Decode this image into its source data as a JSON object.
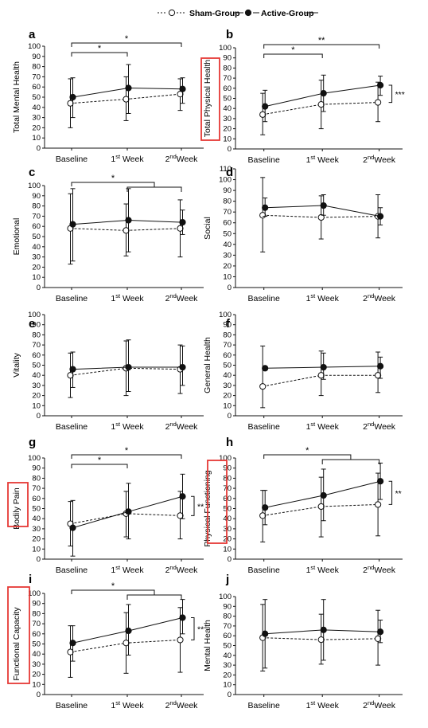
{
  "legend": {
    "sham_label": "Sham-Group",
    "active_label": "Active-Group"
  },
  "x_labels": [
    {
      "base": "Baseline",
      "sup": ""
    },
    {
      "base": "1",
      "sup": "st",
      "rest": " Week"
    },
    {
      "base": "2",
      "sup": "nd",
      "rest": "Week"
    }
  ],
  "colors": {
    "line": "#111111",
    "highlight_box": "#e53935"
  },
  "chart_data": [
    {
      "panel": "a",
      "type": "line",
      "ylabel": "Total Mental Health",
      "highlight": false,
      "ylim": [
        0,
        100
      ],
      "ytick_step": 10,
      "categories": [
        "Baseline",
        "1st Week",
        "2ndWeek"
      ],
      "series": [
        {
          "name": "Sham-Group",
          "values": [
            44,
            48,
            53
          ],
          "err": [
            [
              20,
              68
            ],
            [
              27,
              70
            ],
            [
              37,
              68
            ]
          ]
        },
        {
          "name": "Active-Group",
          "values": [
            50,
            59,
            58
          ],
          "err": [
            [
              30,
              69
            ],
            [
              34,
              82
            ],
            [
              44,
              69
            ]
          ]
        }
      ],
      "brackets": [
        {
          "from": 0,
          "to": 1,
          "label": "*",
          "level": 1
        },
        {
          "from": 0,
          "to": 2,
          "label": "*",
          "level": 2
        }
      ],
      "side_sig": ""
    },
    {
      "panel": "b",
      "type": "line",
      "ylabel": "Total Physical Health",
      "highlight": true,
      "ylim": [
        0,
        100
      ],
      "ytick_step": 10,
      "categories": [
        "Baseline",
        "1st Week",
        "2ndWeek"
      ],
      "series": [
        {
          "name": "Sham-Group",
          "values": [
            34,
            44,
            46
          ],
          "err": [
            [
              14,
              55
            ],
            [
              20,
              68
            ],
            [
              27,
              66
            ]
          ]
        },
        {
          "name": "Active-Group",
          "values": [
            42,
            55,
            63
          ],
          "err": [
            [
              27,
              58
            ],
            [
              37,
              73
            ],
            [
              53,
              72
            ]
          ]
        }
      ],
      "brackets": [
        {
          "from": 0,
          "to": 1,
          "label": "*",
          "level": 1
        },
        {
          "from": 0,
          "to": 2,
          "label": "**",
          "level": 2
        }
      ],
      "side_sig": "***"
    },
    {
      "panel": "c",
      "type": "line",
      "ylabel": "Emotional",
      "highlight": false,
      "ylim": [
        0,
        100
      ],
      "ytick_step": 10,
      "categories": [
        "Baseline",
        "1st Week",
        "2ndWeek"
      ],
      "series": [
        {
          "name": "Sham-Group",
          "values": [
            58,
            56,
            58
          ],
          "err": [
            [
              23,
              92
            ],
            [
              31,
              82
            ],
            [
              30,
              86
            ]
          ]
        },
        {
          "name": "Active-Group",
          "values": [
            62,
            66,
            64
          ],
          "err": [
            [
              26,
              97
            ],
            [
              35,
              97
            ],
            [
              52,
              76
            ]
          ]
        }
      ],
      "brackets": [
        {
          "from": 0,
          "to": [
            1,
            2
          ],
          "label": "*",
          "level": 2
        }
      ],
      "side_sig": ""
    },
    {
      "panel": "d",
      "type": "line",
      "ylabel": "Social",
      "highlight": false,
      "ylim": [
        0,
        110
      ],
      "ytick_step": 10,
      "categories": [
        "Baseline",
        "1st Week",
        "2ndWeek"
      ],
      "series": [
        {
          "name": "Sham-Group",
          "values": [
            67,
            65,
            66
          ],
          "err": [
            [
              33,
              102
            ],
            [
              45,
              85
            ],
            [
              46,
              86
            ]
          ]
        },
        {
          "name": "Active-Group",
          "values": [
            74,
            76,
            66
          ],
          "err": [
            [
              66,
              83
            ],
            [
              67,
              86
            ],
            [
              58,
              74
            ]
          ]
        }
      ],
      "brackets": [],
      "side_sig": ""
    },
    {
      "panel": "e",
      "type": "line",
      "ylabel": "Vitality",
      "highlight": false,
      "ylim": [
        0,
        100
      ],
      "ytick_step": 10,
      "categories": [
        "Baseline",
        "1st Week",
        "2ndWeek"
      ],
      "series": [
        {
          "name": "Sham-Group",
          "values": [
            40,
            47,
            46
          ],
          "err": [
            [
              18,
              62
            ],
            [
              20,
              74
            ],
            [
              22,
              70
            ]
          ]
        },
        {
          "name": "Active-Group",
          "values": [
            46,
            48,
            48
          ],
          "err": [
            [
              28,
              63
            ],
            [
              24,
              75
            ],
            [
              30,
              69
            ]
          ]
        }
      ],
      "brackets": [],
      "side_sig": ""
    },
    {
      "panel": "f",
      "type": "line",
      "ylabel": "General Health",
      "highlight": false,
      "ylim": [
        0,
        100
      ],
      "ytick_step": 10,
      "categories": [
        "Baseline",
        "1st Week",
        "2ndWeek"
      ],
      "series": [
        {
          "name": "Sham-Group",
          "values": [
            29,
            40,
            40
          ],
          "err": [
            [
              8,
              69
            ],
            [
              20,
              64
            ],
            [
              23,
              63
            ]
          ]
        },
        {
          "name": "Active-Group",
          "values": [
            47,
            48,
            49
          ],
          "err": [
            [
              47,
              47
            ],
            [
              36,
              62
            ],
            [
              37,
              58
            ]
          ]
        }
      ],
      "brackets": [],
      "side_sig": ""
    },
    {
      "panel": "g",
      "type": "line",
      "ylabel": "Bodily Pain",
      "highlight": true,
      "ylim": [
        0,
        100
      ],
      "ytick_step": 10,
      "categories": [
        "Baseline",
        "1st Week",
        "2ndWeek"
      ],
      "series": [
        {
          "name": "Sham-Group",
          "values": [
            35,
            45,
            43
          ],
          "err": [
            [
              13,
              57
            ],
            [
              22,
              67
            ],
            [
              20,
              67
            ]
          ]
        },
        {
          "name": "Active-Group",
          "values": [
            31,
            47,
            62
          ],
          "err": [
            [
              3,
              58
            ],
            [
              20,
              75
            ],
            [
              40,
              84
            ]
          ]
        }
      ],
      "brackets": [
        {
          "from": 0,
          "to": 1,
          "label": "*",
          "level": 1
        },
        {
          "from": 0,
          "to": 2,
          "label": "*",
          "level": 2
        }
      ],
      "side_sig": "**"
    },
    {
      "panel": "h",
      "type": "line",
      "ylabel": "Physical Functioning",
      "highlight": true,
      "ylim": [
        0,
        100
      ],
      "ytick_step": 10,
      "categories": [
        "Baseline",
        "1st Week",
        "2ndWeek"
      ],
      "series": [
        {
          "name": "Sham-Group",
          "values": [
            43,
            52,
            54
          ],
          "err": [
            [
              17,
              68
            ],
            [
              22,
              81
            ],
            [
              23,
              85
            ]
          ]
        },
        {
          "name": "Active-Group",
          "values": [
            51,
            63,
            77
          ],
          "err": [
            [
              34,
              68
            ],
            [
              38,
              89
            ],
            [
              59,
              95
            ]
          ]
        }
      ],
      "brackets": [
        {
          "from": 0,
          "to": [
            1,
            2
          ],
          "label": "*",
          "level": 2
        }
      ],
      "side_sig": "**"
    },
    {
      "panel": "i",
      "type": "line",
      "ylabel": "Functional Capacity",
      "highlight": true,
      "ylim": [
        0,
        100
      ],
      "ytick_step": 10,
      "categories": [
        "Baseline",
        "1st Week",
        "2ndWeek"
      ],
      "series": [
        {
          "name": "Sham-Group",
          "values": [
            42,
            51,
            54
          ],
          "err": [
            [
              17,
              68
            ],
            [
              21,
              81
            ],
            [
              22,
              86
            ]
          ]
        },
        {
          "name": "Active-Group",
          "values": [
            51,
            63,
            76
          ],
          "err": [
            [
              33,
              68
            ],
            [
              39,
              89
            ],
            [
              60,
              94
            ]
          ]
        }
      ],
      "brackets": [
        {
          "from": 0,
          "to": [
            1,
            2
          ],
          "label": "*",
          "level": 2
        }
      ],
      "side_sig": "**"
    },
    {
      "panel": "j",
      "type": "line",
      "ylabel": "Mental Health",
      "highlight": false,
      "ylim": [
        0,
        100
      ],
      "ytick_step": 10,
      "categories": [
        "Baseline",
        "1st Week",
        "2ndWeek"
      ],
      "series": [
        {
          "name": "Sham-Group",
          "values": [
            58,
            56,
            57
          ],
          "err": [
            [
              24,
              92
            ],
            [
              31,
              82
            ],
            [
              30,
              86
            ]
          ]
        },
        {
          "name": "Active-Group",
          "values": [
            62,
            66,
            64
          ],
          "err": [
            [
              27,
              97
            ],
            [
              35,
              97
            ],
            [
              53,
              76
            ]
          ]
        }
      ],
      "brackets": [],
      "side_sig": ""
    }
  ]
}
